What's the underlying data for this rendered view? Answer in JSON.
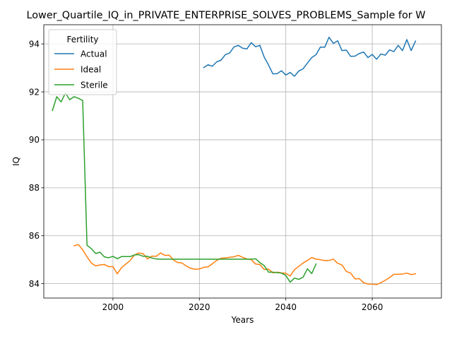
{
  "chart_data": {
    "type": "line",
    "title": "Lower_Quartile_IQ_in_PRIVATE_ENTERPRISE_SOLVES_PROBLEMS_Sample for W",
    "xlabel": "Years",
    "ylabel": "IQ",
    "xlim": [
      1984,
      2076
    ],
    "ylim": [
      83.4,
      94.8
    ],
    "xticks": [
      2000,
      2020,
      2040,
      2060
    ],
    "yticks": [
      84,
      86,
      88,
      90,
      92,
      94
    ],
    "grid": true,
    "legend": {
      "title": "Fertility",
      "placement": "top-left"
    },
    "series": [
      {
        "name": "Actual",
        "color": "#1f77b4",
        "x": [
          2021,
          2022,
          2023,
          2024,
          2025,
          2026,
          2027,
          2028,
          2029,
          2030,
          2031,
          2032,
          2033,
          2034,
          2035,
          2036,
          2037,
          2038,
          2039,
          2040,
          2041,
          2042,
          2043,
          2044,
          2045,
          2046,
          2047,
          2048,
          2049,
          2050,
          2051,
          2052,
          2053,
          2054,
          2055,
          2056,
          2057,
          2058,
          2059,
          2060,
          2061,
          2062,
          2063,
          2064,
          2065,
          2066,
          2067,
          2068,
          2069,
          2070
        ],
        "y": [
          93.01,
          93.13,
          93.07,
          93.25,
          93.32,
          93.55,
          93.62,
          93.87,
          93.94,
          93.82,
          93.79,
          94.05,
          93.88,
          93.94,
          93.45,
          93.12,
          92.75,
          92.76,
          92.88,
          92.7,
          92.81,
          92.65,
          92.87,
          92.96,
          93.2,
          93.43,
          93.55,
          93.87,
          93.86,
          94.28,
          94.02,
          94.13,
          93.72,
          93.74,
          93.48,
          93.49,
          93.6,
          93.66,
          93.43,
          93.56,
          93.36,
          93.58,
          93.53,
          93.75,
          93.68,
          93.94,
          93.72,
          94.18,
          93.72,
          94.12
        ]
      },
      {
        "name": "Ideal",
        "color": "#ff7f0e",
        "x": [
          1991,
          1992,
          1993,
          1994,
          1995,
          1996,
          1997,
          1998,
          1999,
          2000,
          2001,
          2002,
          2003,
          2004,
          2005,
          2006,
          2007,
          2008,
          2009,
          2010,
          2011,
          2012,
          2013,
          2014,
          2015,
          2016,
          2017,
          2018,
          2019,
          2020,
          2021,
          2022,
          2023,
          2024,
          2025,
          2026,
          2027,
          2028,
          2029,
          2030,
          2031,
          2032,
          2033,
          2034,
          2035,
          2036,
          2037,
          2038,
          2039,
          2040,
          2041,
          2042,
          2043,
          2044,
          2045,
          2046,
          2047,
          2048,
          2049,
          2050,
          2051,
          2052,
          2053,
          2054,
          2055,
          2056,
          2057,
          2058,
          2059,
          2060,
          2061,
          2062,
          2063,
          2064,
          2065,
          2066,
          2067,
          2068,
          2069,
          2070
        ],
        "y": [
          85.58,
          85.63,
          85.41,
          85.12,
          84.86,
          84.74,
          84.78,
          84.8,
          84.71,
          84.71,
          84.41,
          84.67,
          84.82,
          84.97,
          85.2,
          85.28,
          85.25,
          85.03,
          85.15,
          85.14,
          85.28,
          85.18,
          85.19,
          84.99,
          84.88,
          84.86,
          84.73,
          84.64,
          84.6,
          84.61,
          84.68,
          84.7,
          84.83,
          84.97,
          85.06,
          85.07,
          85.1,
          85.12,
          85.18,
          85.1,
          85.03,
          85.0,
          84.82,
          84.8,
          84.59,
          84.61,
          84.45,
          84.48,
          84.45,
          84.43,
          84.32,
          84.58,
          84.72,
          84.86,
          84.97,
          85.09,
          85.02,
          85.0,
          84.96,
          84.97,
          85.02,
          84.85,
          84.78,
          84.51,
          84.44,
          84.2,
          84.21,
          84.04,
          83.98,
          83.98,
          83.96,
          84.04,
          84.14,
          84.25,
          84.39,
          84.39,
          84.4,
          84.44,
          84.38,
          84.41
        ]
      },
      {
        "name": "Sterile",
        "color": "#2ca02c",
        "x": [
          1986,
          1987,
          1988,
          1989,
          1990,
          1991,
          1992,
          1993,
          1994,
          1995,
          1996,
          1997,
          1998,
          1999,
          2000,
          2001,
          2002,
          2003,
          2004,
          2005,
          2006,
          2007,
          2008,
          2009,
          2010,
          2011,
          2012,
          2013,
          2014,
          2015,
          2016,
          2017,
          2018,
          2019,
          2020,
          2021,
          2022,
          2023,
          2024,
          2025,
          2026,
          2027,
          2028,
          2029,
          2030,
          2031,
          2032,
          2033,
          2034,
          2035,
          2036,
          2037,
          2038,
          2039,
          2040,
          2041,
          2042,
          2043,
          2044,
          2045,
          2046,
          2047
        ],
        "y": [
          91.22,
          91.8,
          91.58,
          91.95,
          91.67,
          91.8,
          91.73,
          91.64,
          85.6,
          85.46,
          85.26,
          85.31,
          85.12,
          85.08,
          85.14,
          85.04,
          85.13,
          85.13,
          85.13,
          85.2,
          85.21,
          85.14,
          85.14,
          85.07,
          85.03,
          85.02,
          85.02,
          85.02,
          85.02,
          85.02,
          85.02,
          85.02,
          85.02,
          85.02,
          85.02,
          85.02,
          85.02,
          85.02,
          85.02,
          85.02,
          85.02,
          85.02,
          85.02,
          85.02,
          85.02,
          85.02,
          85.02,
          85.04,
          84.88,
          84.75,
          84.48,
          84.48,
          84.46,
          84.44,
          84.34,
          84.06,
          84.23,
          84.18,
          84.27,
          84.62,
          84.42,
          84.82
        ]
      }
    ]
  }
}
